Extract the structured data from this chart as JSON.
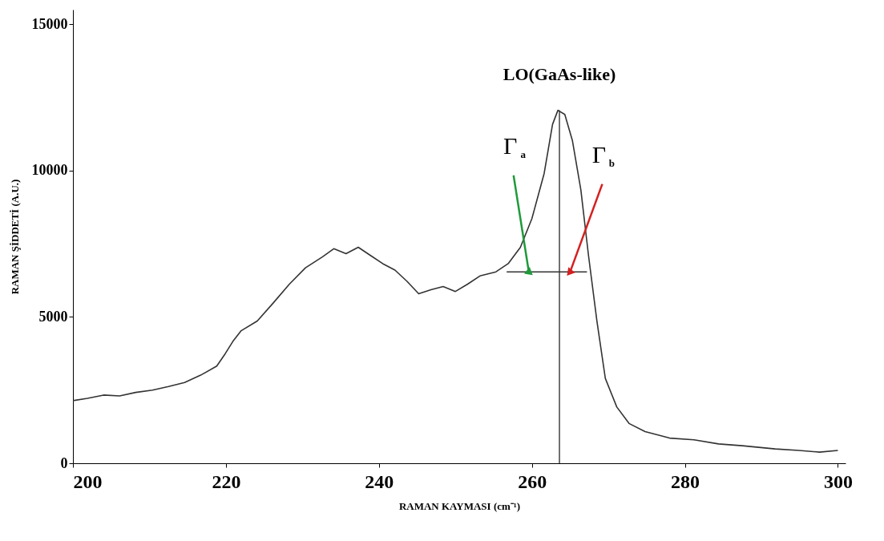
{
  "chart_data": {
    "type": "line",
    "xlabel": "RAMAN KAYMASI (cm⁻¹)",
    "ylabel": "RAMAN ŞİDDETİ (A.U.)",
    "xlim": [
      200,
      301
    ],
    "ylim": [
      0,
      15500
    ],
    "xticks": [
      200,
      220,
      240,
      260,
      280,
      300
    ],
    "yticks": [
      0,
      5000,
      10000,
      15000
    ],
    "grid": false,
    "marker": "none",
    "line_style": "solid",
    "series": [
      {
        "color": "#333333",
        "x": [
          200,
          201.9,
          204,
          206.1,
          208.2,
          210.4,
          212.5,
          214.6,
          216.7,
          218.8,
          219.9,
          220.9,
          222,
          224.1,
          226.2,
          228.3,
          230.4,
          232.6,
          234.1,
          235.7,
          237.3,
          238.9,
          240.5,
          242.1,
          243.7,
          245.2,
          246.8,
          248.4,
          250,
          251.6,
          253.2,
          255.3,
          256.9,
          258.5,
          260,
          261.6,
          262.7,
          263.4,
          264.3,
          265.3,
          266.4,
          267.4,
          268.5,
          269.6,
          271.1,
          272.7,
          274.8,
          278,
          281.2,
          284.4,
          287.5,
          291.8,
          294.9,
          297.6,
          300
        ],
        "values": [
          2140,
          2220,
          2330,
          2300,
          2420,
          2500,
          2620,
          2760,
          3010,
          3320,
          3740,
          4160,
          4530,
          4860,
          5480,
          6120,
          6680,
          7050,
          7330,
          7160,
          7380,
          7100,
          6820,
          6600,
          6210,
          5790,
          5930,
          6040,
          5870,
          6120,
          6400,
          6540,
          6820,
          7380,
          8360,
          9900,
          11580,
          12060,
          11920,
          11020,
          9340,
          7100,
          4860,
          2900,
          1920,
          1360,
          1080,
          860,
          800,
          660,
          600,
          490,
          440,
          380,
          440
        ]
      },
      {
        "color": "#333333",
        "x": [
          256.7,
          267.2
        ],
        "values": [
          6540,
          6540
        ]
      }
    ],
    "ref_lines": [
      {
        "axis": "x",
        "value": 263.6,
        "color": "#333333"
      }
    ],
    "annotations": [
      {
        "text": "LO(GaAs-like)",
        "x": 263.6,
        "y": 12060
      },
      {
        "text": "Γ$_{a}$",
        "x": 259.6,
        "y": 6540
      },
      {
        "text": "Γ$_{b}$",
        "x": 265.0,
        "y": 6540
      }
    ]
  }
}
